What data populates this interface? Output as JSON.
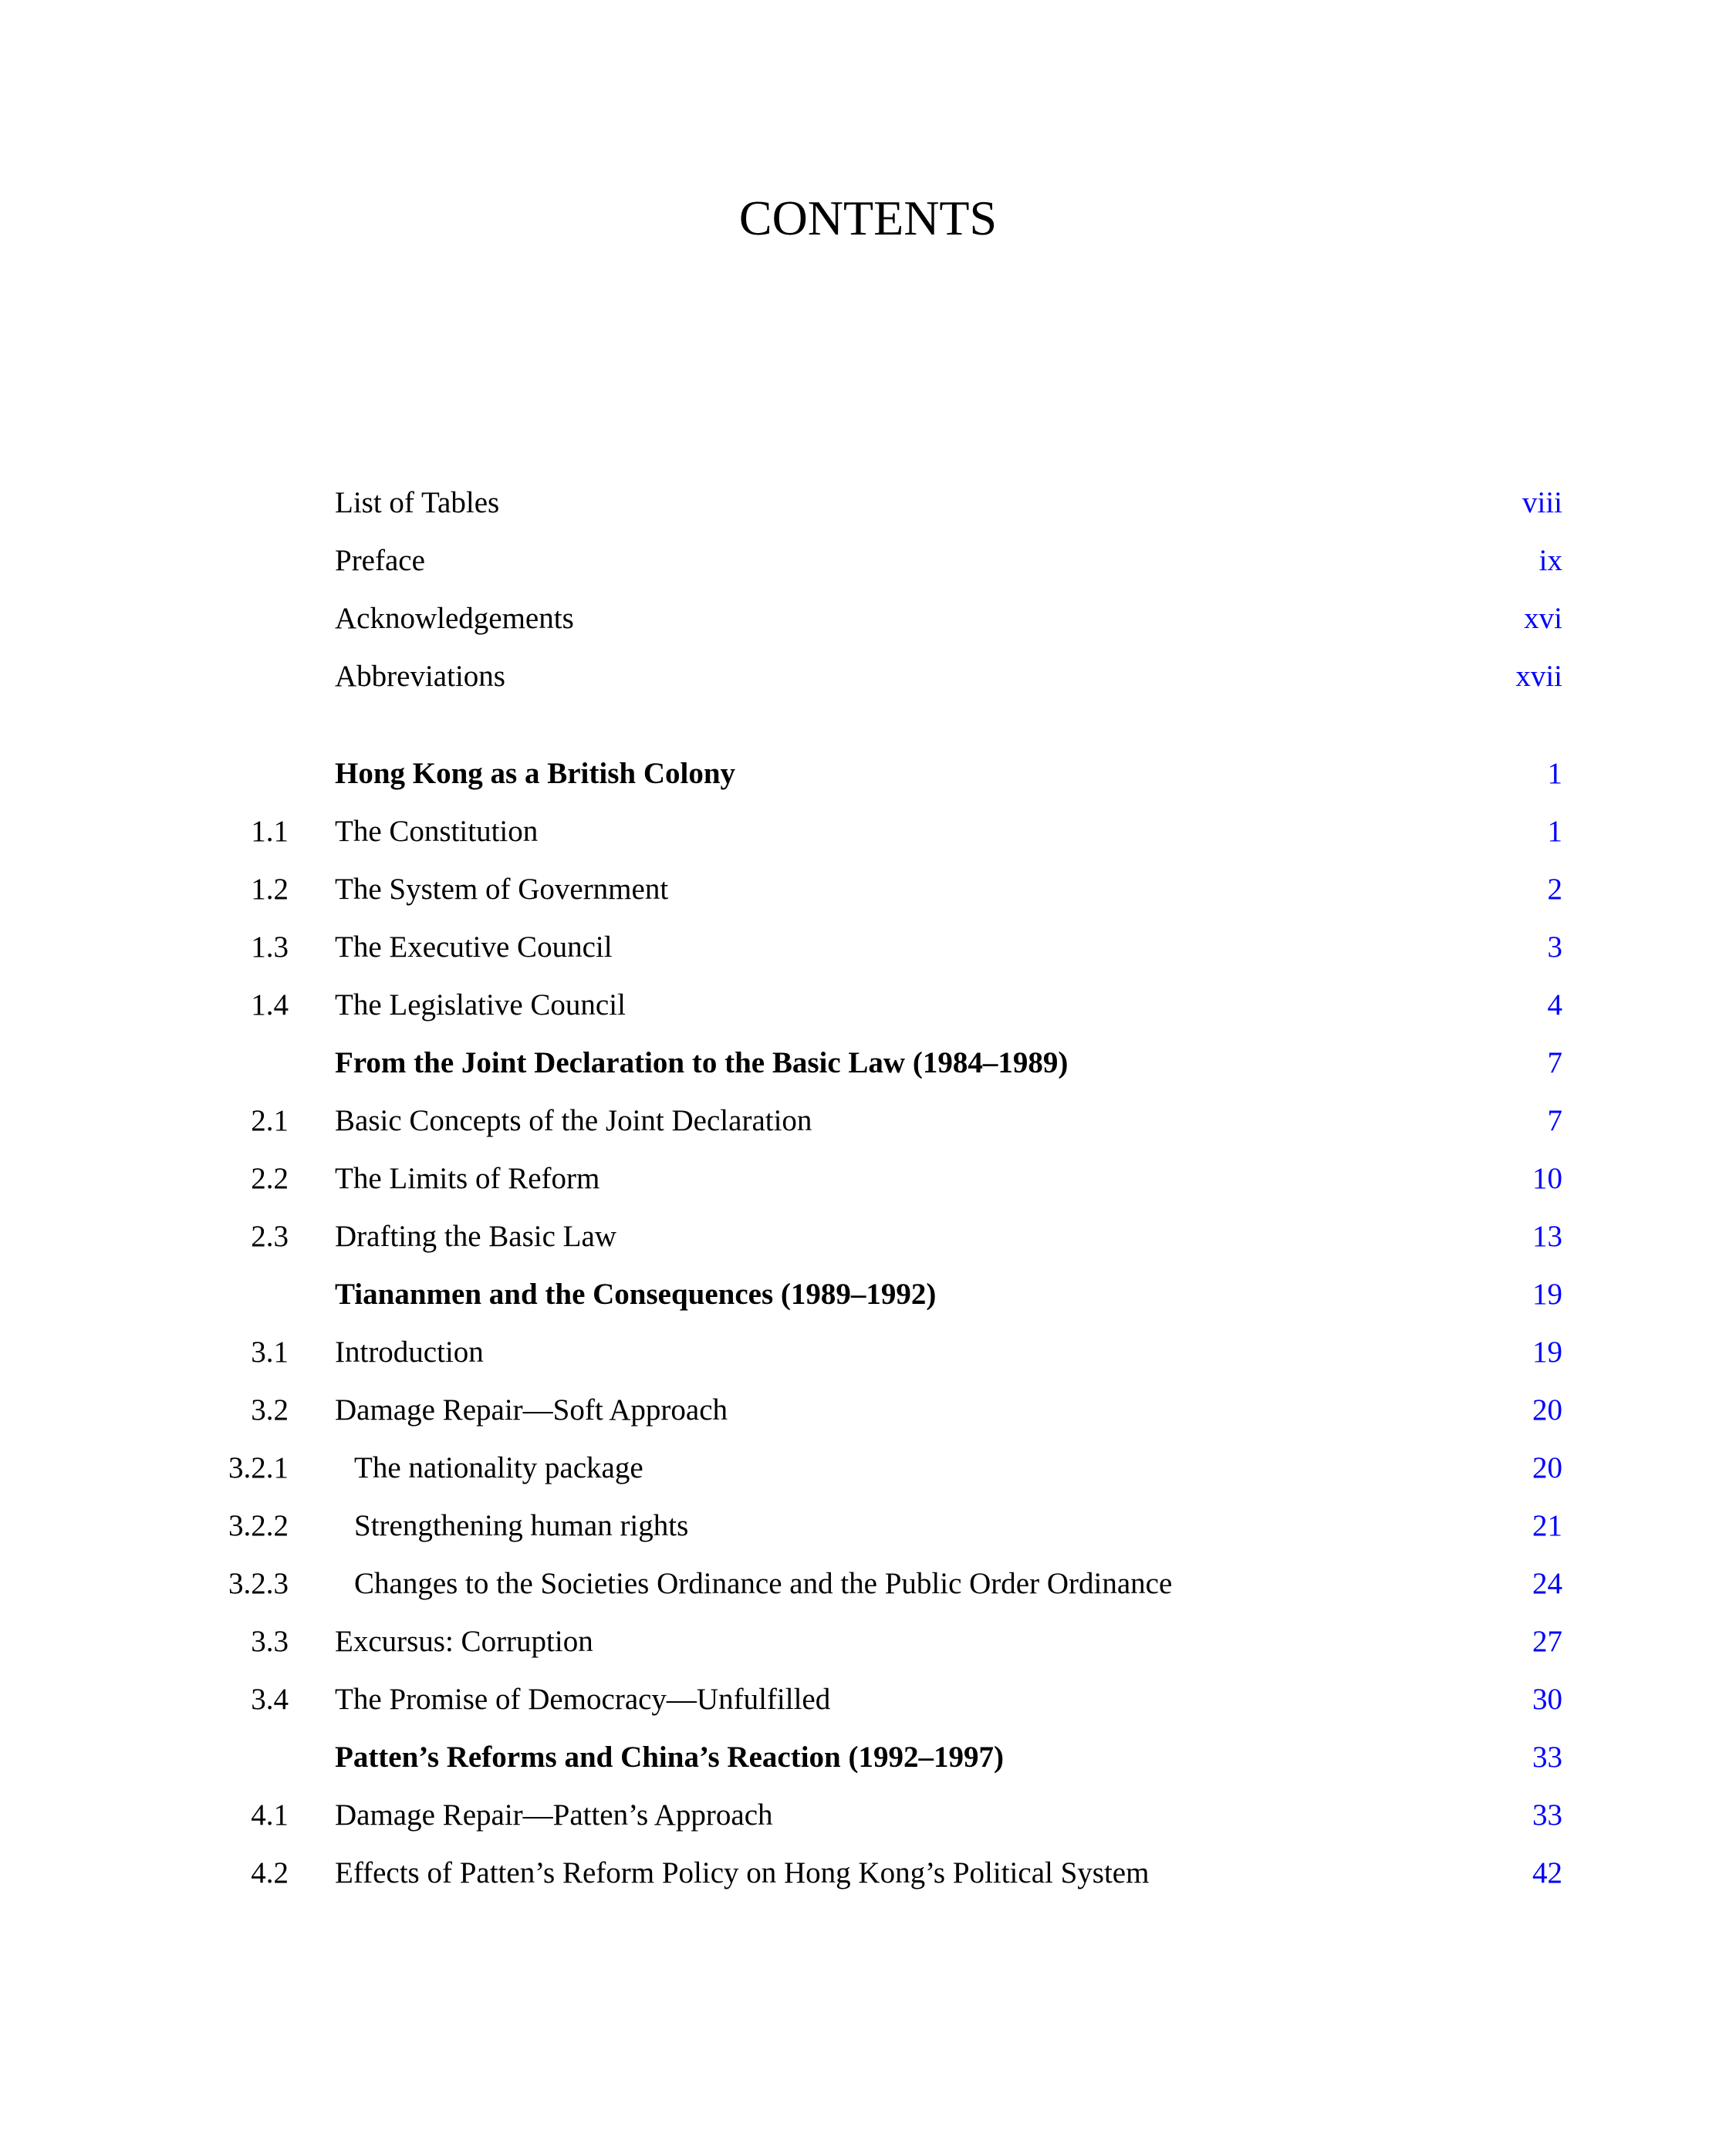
{
  "title": "CONTENTS",
  "link_color": "#0000ff",
  "entries": [
    {
      "num": "",
      "label": "List of Tables",
      "page": "viii",
      "type": "front"
    },
    {
      "num": "",
      "label": "Preface",
      "page": "ix",
      "type": "front"
    },
    {
      "num": "",
      "label": "Acknowledgements",
      "page": "xvi",
      "type": "front"
    },
    {
      "num": "",
      "label": "Abbreviations",
      "page": "xvii",
      "type": "front"
    },
    {
      "num": "",
      "label": "Hong Kong as a British Colony",
      "page": "1",
      "type": "chapter"
    },
    {
      "num": "1.1",
      "label": "The Constitution",
      "page": "1",
      "type": "section"
    },
    {
      "num": "1.2",
      "label": "The System of Government",
      "page": "2",
      "type": "section"
    },
    {
      "num": "1.3",
      "label": "The Executive Council",
      "page": "3",
      "type": "section"
    },
    {
      "num": "1.4",
      "label": "The Legislative Council",
      "page": "4",
      "type": "section"
    },
    {
      "num": "",
      "label": "From the Joint Declaration to the Basic Law (1984–1989)",
      "page": "7",
      "type": "chapter"
    },
    {
      "num": "2.1",
      "label": "Basic Concepts of the Joint Declaration",
      "page": "7",
      "type": "section"
    },
    {
      "num": "2.2",
      "label": "The Limits of Reform",
      "page": "10",
      "type": "section"
    },
    {
      "num": "2.3",
      "label": "Drafting the Basic Law",
      "page": "13",
      "type": "section"
    },
    {
      "num": "",
      "label": "Tiananmen and the Consequences (1989–1992)",
      "page": "19",
      "type": "chapter"
    },
    {
      "num": "3.1",
      "label": "Introduction",
      "page": "19",
      "type": "section"
    },
    {
      "num": "3.2",
      "label": "Damage Repair—Soft Approach",
      "page": "20",
      "type": "section"
    },
    {
      "num": "3.2.1",
      "label": "The nationality package",
      "page": "20",
      "type": "sub"
    },
    {
      "num": "3.2.2",
      "label": "Strengthening human rights",
      "page": "21",
      "type": "sub"
    },
    {
      "num": "3.2.3",
      "label": "Changes to the Societies Ordinance and the Public Order Ordinance",
      "page": "24",
      "type": "sub"
    },
    {
      "num": "3.3",
      "label": "Excursus: Corruption",
      "page": "27",
      "type": "section"
    },
    {
      "num": "3.4",
      "label": "The Promise of Democracy—Unfulfilled",
      "page": "30",
      "type": "section"
    },
    {
      "num": "",
      "label": "Patten’s Reforms and China’s Reaction (1992–1997)",
      "page": "33",
      "type": "chapter"
    },
    {
      "num": "4.1",
      "label": "Damage Repair—Patten’s Approach",
      "page": "33",
      "type": "section"
    },
    {
      "num": "4.2",
      "label": "Effects of Patten’s Reform Policy on Hong Kong’s Political System",
      "page": "42",
      "type": "section"
    }
  ]
}
